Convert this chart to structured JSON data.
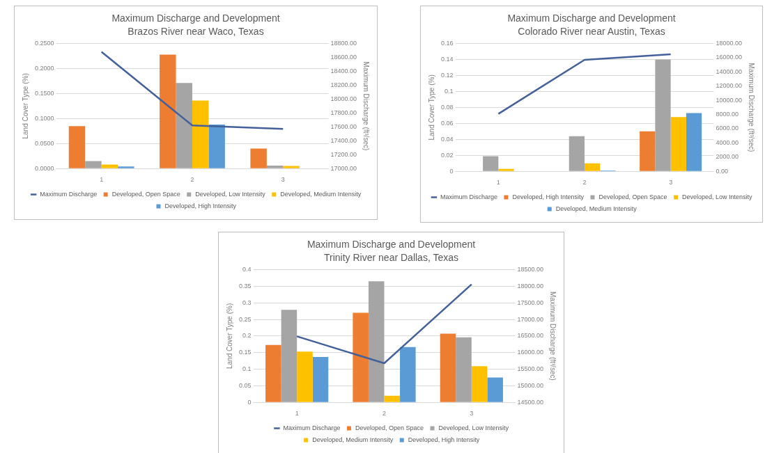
{
  "chart_data": [
    {
      "type": "bar",
      "title": "Maximum Discharge and Development",
      "subtitle": "Brazos River near Waco, Texas",
      "ylabel": "Land Cover Type (%)",
      "y2label": "Maximum Discharge (ft³/sec)",
      "categories": [
        "1",
        "2",
        "3"
      ],
      "series": [
        {
          "name": "Developed, Open Space",
          "color": "#ed7d31",
          "values": [
            0.085,
            0.228,
            0.04
          ]
        },
        {
          "name": "Developed, Low Intensity",
          "color": "#a5a5a5",
          "values": [
            0.015,
            0.171,
            0.006
          ]
        },
        {
          "name": "Developed, Medium Intensity",
          "color": "#ffc000",
          "values": [
            0.008,
            0.136,
            0.005
          ]
        },
        {
          "name": "Developed, High Intensity",
          "color": "#5b9bd5",
          "values": [
            0.004,
            0.088,
            null
          ]
        },
        {
          "name": "Maximum Discharge",
          "type": "line",
          "axis": "y2",
          "color": "#44609a",
          "values": [
            18680,
            17620,
            17570
          ]
        }
      ],
      "ylim": [
        0,
        0.25
      ],
      "yticks": [
        {
          "value": 0,
          "label": "0.0000"
        },
        {
          "value": 0.05,
          "label": "0.0500"
        },
        {
          "value": 0.1,
          "label": "0.1000"
        },
        {
          "value": 0.15,
          "label": "0.1500"
        },
        {
          "value": 0.2,
          "label": "0.2000"
        },
        {
          "value": 0.25,
          "label": "0.2500"
        }
      ],
      "y2lim": [
        17000,
        18800
      ],
      "y2ticks": [
        {
          "value": 17000,
          "label": "17000.00"
        },
        {
          "value": 17200,
          "label": "17200.00"
        },
        {
          "value": 17400,
          "label": "17400.00"
        },
        {
          "value": 17600,
          "label": "17600.00"
        },
        {
          "value": 17800,
          "label": "17800.00"
        },
        {
          "value": 18000,
          "label": "18000.00"
        },
        {
          "value": 18200,
          "label": "18200.00"
        },
        {
          "value": 18400,
          "label": "18400.00"
        },
        {
          "value": 18600,
          "label": "18600.00"
        },
        {
          "value": 18800,
          "label": "18800.00"
        }
      ],
      "grid": "y",
      "legend": "bottom",
      "marker": "none"
    },
    {
      "type": "bar",
      "title": "Maximum Discharge and Development",
      "subtitle": "Colorado River near Austin, Texas",
      "ylabel": "Land Cover Type (%)",
      "y2label": "Maximum Discharge (ft³/sec)",
      "categories": [
        "1",
        "2",
        "3"
      ],
      "series": [
        {
          "name": "Developed, High Intensity",
          "color": "#ed7d31",
          "values": [
            null,
            null,
            0.05
          ]
        },
        {
          "name": "Developed, Open Space",
          "color": "#a5a5a5",
          "values": [
            0.019,
            0.044,
            0.14
          ]
        },
        {
          "name": "Developed, Low Intensity",
          "color": "#ffc000",
          "values": [
            0.003,
            0.01,
            0.068
          ]
        },
        {
          "name": "Developed, Medium Intensity",
          "color": "#5b9bd5",
          "values": [
            null,
            0.001,
            0.073
          ]
        },
        {
          "name": "Maximum Discharge",
          "type": "line",
          "axis": "y2",
          "color": "#44609a",
          "values": [
            8100,
            15700,
            16500
          ]
        }
      ],
      "ylim": [
        0,
        0.16
      ],
      "yticks": [
        0,
        0.02,
        0.04,
        0.06,
        0.08,
        0.1,
        0.12,
        0.14,
        0.16
      ],
      "y2lim": [
        0,
        18000
      ],
      "y2ticks": [
        {
          "value": 0,
          "label": "0.00"
        },
        {
          "value": 2000,
          "label": "2000.00"
        },
        {
          "value": 4000,
          "label": "4000.00"
        },
        {
          "value": 6000,
          "label": "6000.00"
        },
        {
          "value": 8000,
          "label": "8000.00"
        },
        {
          "value": 10000,
          "label": "10000.00"
        },
        {
          "value": 12000,
          "label": "12000.00"
        },
        {
          "value": 14000,
          "label": "14000.00"
        },
        {
          "value": 16000,
          "label": "16000.00"
        },
        {
          "value": 18000,
          "label": "18000.00"
        }
      ],
      "grid": "y",
      "legend": "bottom",
      "marker": "none"
    },
    {
      "type": "bar",
      "title": "Maximum Discharge and Development",
      "subtitle": "Trinity River near Dallas, Texas",
      "ylabel": "Land Cover Type (%)",
      "y2label": "Maximum Discharge (ft³/sec)",
      "categories": [
        "1",
        "2",
        "3"
      ],
      "series": [
        {
          "name": "Developed, Open Space",
          "color": "#ed7d31",
          "values": [
            0.173,
            0.27,
            0.207
          ]
        },
        {
          "name": "Developed, Low Intensity",
          "color": "#a5a5a5",
          "values": [
            0.279,
            0.365,
            0.196
          ]
        },
        {
          "name": "Developed, Medium Intensity",
          "color": "#ffc000",
          "values": [
            0.153,
            0.02,
            0.109
          ]
        },
        {
          "name": "Developed, High Intensity",
          "color": "#5b9bd5",
          "values": [
            0.137,
            0.167,
            0.075
          ]
        },
        {
          "name": "Maximum Discharge",
          "type": "line",
          "axis": "y2",
          "color": "#44609a",
          "values": [
            16490,
            15680,
            18060
          ]
        }
      ],
      "ylim": [
        0,
        0.4
      ],
      "yticks": [
        0,
        0.05,
        0.1,
        0.15,
        0.2,
        0.25,
        0.3,
        0.35,
        0.4
      ],
      "y2lim": [
        14500,
        18500
      ],
      "y2ticks": [
        {
          "value": 14500,
          "label": "14500.00"
        },
        {
          "value": 15000,
          "label": "15000.00"
        },
        {
          "value": 15500,
          "label": "15500.00"
        },
        {
          "value": 16000,
          "label": "16000.00"
        },
        {
          "value": 16500,
          "label": "16500.00"
        },
        {
          "value": 17000,
          "label": "17000.00"
        },
        {
          "value": 17500,
          "label": "17500.00"
        },
        {
          "value": 18000,
          "label": "18000.00"
        },
        {
          "value": 18500,
          "label": "18500.00"
        }
      ],
      "grid": "y",
      "legend": "bottom",
      "marker": "none"
    }
  ]
}
